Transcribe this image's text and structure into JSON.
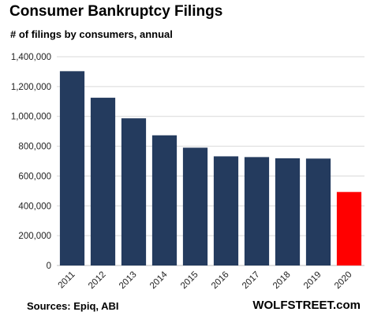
{
  "title": "Consumer Bankruptcy Filings",
  "subtitle": "# of filings by consumers, annual",
  "source": "Sources: Epiq, ABI",
  "brand": "WOLFSTREET.com",
  "colors": {
    "bar": "#243b5e",
    "highlight": "#ff0000",
    "grid": "#d9d9d9"
  },
  "chart_data": {
    "type": "bar",
    "categories": [
      "2011",
      "2012",
      "2013",
      "2014",
      "2015",
      "2016",
      "2017",
      "2018",
      "2019",
      "2020"
    ],
    "values": [
      1303000,
      1125000,
      987000,
      873000,
      790000,
      732000,
      727000,
      719000,
      717000,
      493000
    ],
    "highlight_index": 9,
    "ylim": [
      0,
      1400000
    ],
    "yticks": [
      0,
      200000,
      400000,
      600000,
      800000,
      1000000,
      1200000,
      1400000
    ],
    "ytick_labels": [
      "0",
      "200,000",
      "400,000",
      "600,000",
      "800,000",
      "1,000,000",
      "1,200,000",
      "1,400,000"
    ],
    "grid": true,
    "legend": "none"
  }
}
